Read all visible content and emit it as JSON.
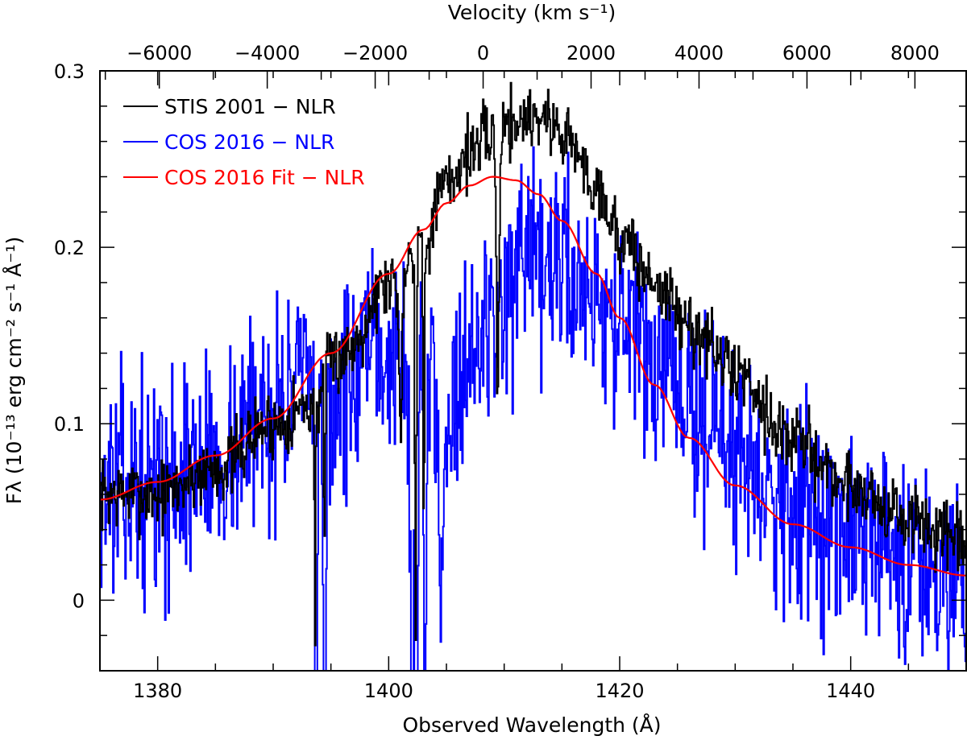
{
  "chart_data": {
    "type": "line",
    "xlabel": "Observed Wavelength (Å)",
    "ylabel": "Fλ (10⁻¹³ erg cm⁻² s⁻¹ Å⁻¹)",
    "top_xlabel": "Velocity (km s⁻¹)",
    "xlim": [
      1375,
      1450
    ],
    "ylim": [
      -0.04,
      0.3
    ],
    "top_xlim": [
      -7100,
      8950
    ],
    "x_ticks": [
      1380,
      1400,
      1420,
      1440
    ],
    "x_tick_labels": [
      "1380",
      "1400",
      "1420",
      "1440"
    ],
    "y_ticks": [
      0,
      0.1,
      0.2,
      0.3
    ],
    "y_tick_labels": [
      "0",
      "0.1",
      "0.2",
      "0.3"
    ],
    "top_ticks": [
      -6000,
      -4000,
      -2000,
      0,
      2000,
      4000,
      6000,
      8000
    ],
    "top_tick_labels": [
      "−6000",
      "−4000",
      "−2000",
      "0",
      "2000",
      "4000",
      "6000",
      "8000"
    ],
    "legend_position": "top-left",
    "colors": {
      "stis": "#000000",
      "cos": "#0000ff",
      "fit": "#ff0000"
    },
    "series": [
      {
        "name": "STIS 2001 − NLR",
        "key": "stis",
        "anchors": [
          [
            1375,
            0.06
          ],
          [
            1380,
            0.06
          ],
          [
            1385,
            0.075
          ],
          [
            1390,
            0.1
          ],
          [
            1393,
            0.11
          ],
          [
            1396,
            0.14
          ],
          [
            1400,
            0.18
          ],
          [
            1403,
            0.205
          ],
          [
            1405,
            0.235
          ],
          [
            1407,
            0.255
          ],
          [
            1410,
            0.27
          ],
          [
            1413,
            0.275
          ],
          [
            1415,
            0.265
          ],
          [
            1418,
            0.235
          ],
          [
            1420,
            0.205
          ],
          [
            1423,
            0.18
          ],
          [
            1426,
            0.155
          ],
          [
            1430,
            0.13
          ],
          [
            1435,
            0.09
          ],
          [
            1440,
            0.065
          ],
          [
            1445,
            0.045
          ],
          [
            1450,
            0.03
          ]
        ],
        "dips": [
          [
            1393.6,
            0.55,
            0.05
          ],
          [
            1394.4,
            0.45,
            0.05
          ],
          [
            1401.0,
            0.4,
            0.12
          ],
          [
            1402.3,
            0.9,
            0.06
          ],
          [
            1403.0,
            0.7,
            0.06
          ],
          [
            1409.4,
            0.6,
            0.12
          ]
        ],
        "noise": 0.01,
        "seed": 7
      },
      {
        "name": "COS 2016 − NLR",
        "key": "cos",
        "anchors": [
          [
            1375,
            0.065
          ],
          [
            1380,
            0.065
          ],
          [
            1385,
            0.08
          ],
          [
            1390,
            0.11
          ],
          [
            1392,
            0.12
          ],
          [
            1395,
            0.11
          ],
          [
            1398,
            0.13
          ],
          [
            1400,
            0.14
          ],
          [
            1403,
            0.12
          ],
          [
            1405,
            0.11
          ],
          [
            1407,
            0.14
          ],
          [
            1410,
            0.17
          ],
          [
            1413,
            0.185
          ],
          [
            1415,
            0.19
          ],
          [
            1418,
            0.175
          ],
          [
            1420,
            0.155
          ],
          [
            1423,
            0.13
          ],
          [
            1426,
            0.11
          ],
          [
            1430,
            0.085
          ],
          [
            1435,
            0.055
          ],
          [
            1440,
            0.035
          ],
          [
            1445,
            0.025
          ],
          [
            1450,
            0.02
          ]
        ],
        "dips": [
          [
            1393.7,
            1.4,
            0.08
          ],
          [
            1394.4,
            1.3,
            0.08
          ],
          [
            1402.0,
            0.9,
            0.15
          ],
          [
            1402.4,
            1.8,
            0.07
          ],
          [
            1403.1,
            1.6,
            0.07
          ],
          [
            1404.5,
            0.5,
            0.1
          ]
        ],
        "noise": 0.03,
        "seed": 13
      },
      {
        "name": "COS 2016 Fit − NLR",
        "key": "fit",
        "anchors": [
          [
            1375,
            0.057
          ],
          [
            1380,
            0.067
          ],
          [
            1385,
            0.082
          ],
          [
            1390,
            0.103
          ],
          [
            1395,
            0.14
          ],
          [
            1400,
            0.185
          ],
          [
            1403,
            0.21
          ],
          [
            1405,
            0.225
          ],
          [
            1407,
            0.235
          ],
          [
            1409,
            0.24
          ],
          [
            1411,
            0.238
          ],
          [
            1413,
            0.23
          ],
          [
            1415,
            0.215
          ],
          [
            1418,
            0.185
          ],
          [
            1420,
            0.16
          ],
          [
            1423,
            0.122
          ],
          [
            1426,
            0.092
          ],
          [
            1430,
            0.065
          ],
          [
            1435,
            0.043
          ],
          [
            1440,
            0.03
          ],
          [
            1445,
            0.02
          ],
          [
            1450,
            0.014
          ]
        ],
        "dips": [],
        "noise": 0,
        "seed": 1
      }
    ]
  }
}
